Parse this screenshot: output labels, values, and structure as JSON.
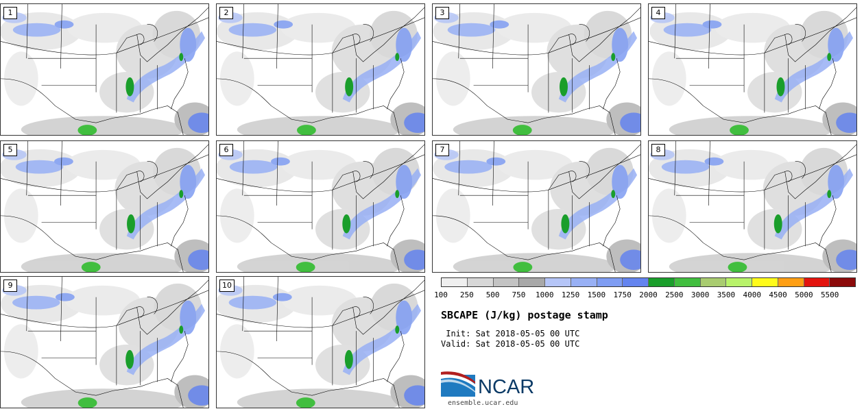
{
  "members": [
    "1",
    "2",
    "3",
    "4",
    "5",
    "6",
    "7",
    "8",
    "9",
    "10"
  ],
  "colorbar": {
    "colors": [
      "#efefef",
      "#d7d7d7",
      "#c3c3c3",
      "#a8a8a8",
      "#b5c5f7",
      "#98b0f5",
      "#7f9df3",
      "#6484ef",
      "#1a9e2b",
      "#41be3f",
      "#a9cc70",
      "#b8f26a",
      "#fffb1a",
      "#ff9f14",
      "#e3140e",
      "#8b0a0a"
    ],
    "tick_labels": [
      "100",
      "250",
      "500",
      "750",
      "1000",
      "1250",
      "1500",
      "1750",
      "2000",
      "2500",
      "3000",
      "3500",
      "4000",
      "4500",
      "5000",
      "5500"
    ]
  },
  "title": "SBCAPE (J/kg) postage stamp",
  "init_line": " Init: Sat 2018-05-05 00 UTC",
  "valid_line": "Valid: Sat 2018-05-05 00 UTC",
  "logo": {
    "text": "NCAR",
    "url": "ensemble.ucar.edu"
  }
}
